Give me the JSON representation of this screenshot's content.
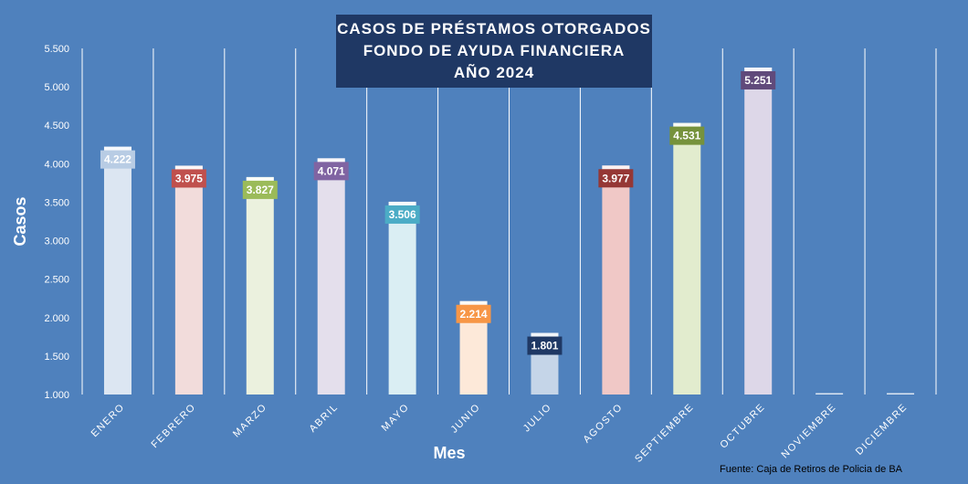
{
  "chart_data": {
    "type": "bar",
    "title_lines": [
      "CASOS DE PRÉSTAMOS OTORGADOS",
      "FONDO DE AYUDA FINANCIERA",
      "AÑO 2024"
    ],
    "xlabel": "Mes",
    "ylabel": "Casos",
    "ylim": [
      1000,
      5500
    ],
    "yticks": [
      "1.000",
      "1.500",
      "2.000",
      "2.500",
      "3.000",
      "3.500",
      "4.000",
      "4.500",
      "5.000",
      "5.500"
    ],
    "ytick_values": [
      1000,
      1500,
      2000,
      2500,
      3000,
      3500,
      4000,
      4500,
      5000,
      5500
    ],
    "categories": [
      "ENERO",
      "FEBRERO",
      "MARZO",
      "ABRIL",
      "MAYO",
      "JUNIO",
      "JULIO",
      "AGOSTO",
      "SEPTIEMBRE",
      "OCTUBRE",
      "NOVIEMBRE",
      "DICIEMBRE"
    ],
    "values": [
      4222,
      3975,
      3827,
      4071,
      3506,
      2214,
      1801,
      3977,
      4531,
      5251,
      1000,
      1000
    ],
    "data_labels": [
      "4.222",
      "3.975",
      "3.827",
      "4.071",
      "3.506",
      "2.214",
      "1.801",
      "3.977",
      "4.531",
      "5.251",
      "",
      ""
    ],
    "bar_colors": [
      "#dce6f2",
      "#f2dcdb",
      "#ebf1de",
      "#e4dfec",
      "#daeef3",
      "#fde9d9",
      "#c5d5e8",
      "#f0c8c6",
      "#e2ecce",
      "#ddd7e8",
      "#dce6f2",
      "#dce6f2"
    ],
    "label_colors": [
      "#b8cce4",
      "#c0504d",
      "#9bbb59",
      "#8064a2",
      "#4bacc6",
      "#f79646",
      "#1f3864",
      "#953735",
      "#76923c",
      "#604a7b",
      "#dce6f2",
      "#dce6f2"
    ],
    "grid": "vertical separators",
    "legend": "none",
    "source_note": "Fuente: Caja de Retiros de Policia de BA"
  }
}
